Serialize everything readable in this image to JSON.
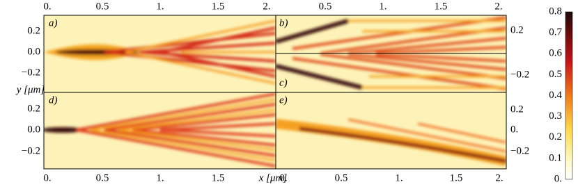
{
  "panels": [
    {
      "label": "a)"
    },
    {
      "label": "b)"
    },
    {
      "label": "c)"
    },
    {
      "label": "d)"
    },
    {
      "label": "e)"
    }
  ],
  "top_left_x_ticks": [
    "0.",
    "0.5",
    "1.",
    "1.5",
    "2."
  ],
  "top_right_x_ticks": [
    "0.5",
    "1.",
    "1.5",
    "2."
  ],
  "bottom_left_x_ticks": [
    "0.",
    "0.5",
    "1.",
    "1.5"
  ],
  "bottom_right_x_ticks": [
    "0.",
    "0.5",
    "1.",
    "1.5",
    "2."
  ],
  "x_axis_label": "x [μm]",
  "y_axis_label": "y [μm]",
  "left_top_y_ticks": [
    "0.2",
    "0.0",
    "−0.2"
  ],
  "left_bottom_y_ticks": [
    "0.2",
    "0.0",
    "−0.2"
  ],
  "right_top_y_ticks": [
    "0.2",
    "−0.2"
  ],
  "right_bottom_y_ticks": [
    "0.2",
    "0.",
    "−0.2"
  ],
  "colorbar_ticks": [
    "0.8",
    "0.7",
    "0.6",
    "0.5",
    "0.4",
    "0.3",
    "0.2",
    "0.1",
    "0."
  ]
}
